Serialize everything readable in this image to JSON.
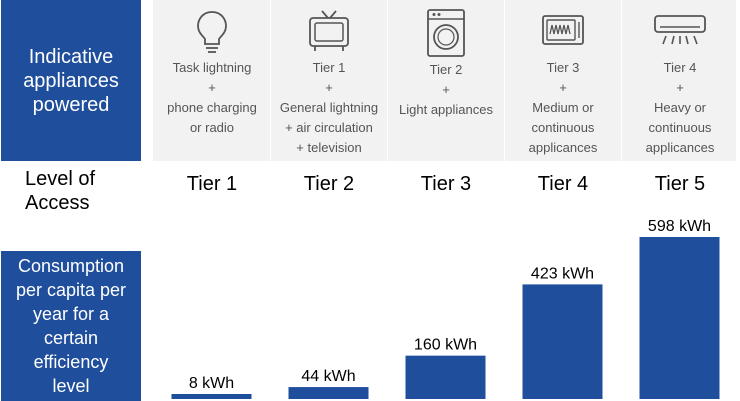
{
  "row_labels": {
    "appliances": [
      "Indicative",
      "appliances",
      "powered"
    ],
    "level": [
      "Level of",
      "Access"
    ],
    "consumption": [
      "Consumption",
      "per capita per",
      "year for a",
      "certain",
      "efficiency",
      "level"
    ]
  },
  "tiers": [
    {
      "icon": "light-bulb-icon",
      "lines": "Task lightning\n+\nphone charging\nor radio"
    },
    {
      "icon": "television-icon",
      "lines": "Tier 1\n+\nGeneral lightning\n+ air circulation\n+ television"
    },
    {
      "icon": "washing-machine-icon",
      "lines": "Tier 2\n+\nLight appliances"
    },
    {
      "icon": "microwave-icon",
      "lines": "Tier 3\n+\nMedium or\ncontinuous\napplicances"
    },
    {
      "icon": "air-conditioner-icon",
      "lines": "Tier 4\n+\nHeavy or\ncontinuous\napplicances"
    }
  ],
  "chart_data": {
    "type": "bar",
    "categories": [
      "Tier 1",
      "Tier 2",
      "Tier 3",
      "Tier 4",
      "Tier 5"
    ],
    "values": [
      8,
      44,
      160,
      423,
      598
    ],
    "labels": [
      "8 kWh",
      "44 kWh",
      "160 kWh",
      "423 kWh",
      "598 kWh"
    ],
    "unit": "kWh",
    "ylim": [
      0,
      598
    ],
    "bar_color": "#1f4e9c"
  },
  "colors": {
    "accent": "#1f4e9c",
    "panel": "#f2f2f2",
    "muted_text": "#555555"
  }
}
